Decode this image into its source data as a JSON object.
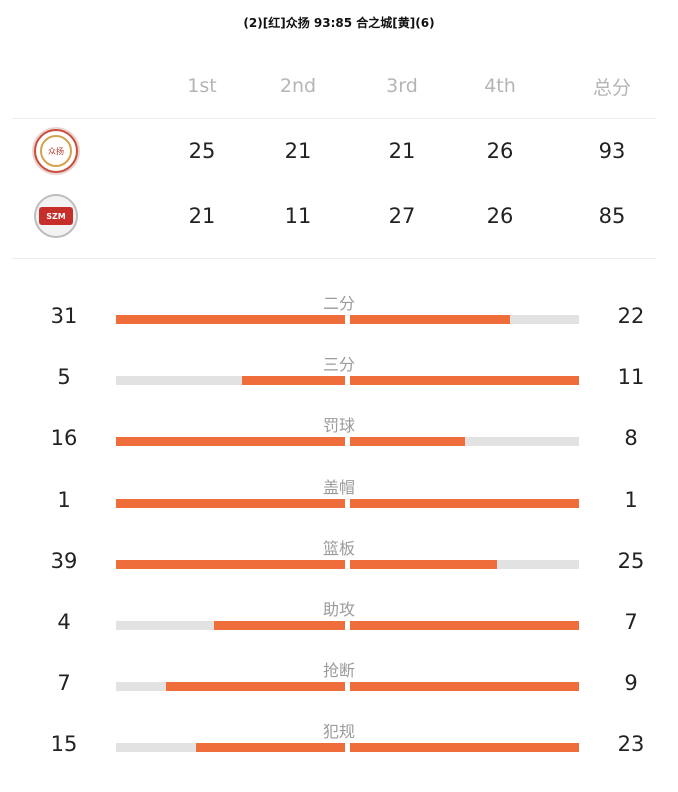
{
  "title": "(2)[红]众扬 93:85 合之城[黄](6)",
  "colors": {
    "accent": "#ee6d3b",
    "track": "#e2e2e2",
    "header_text": "#b5b5b5",
    "label_text": "#9b9b9b"
  },
  "scoreboard": {
    "headers": [
      "1st",
      "2nd",
      "3rd",
      "4th",
      "总分"
    ],
    "teams": [
      {
        "logo_icon": "team-logo-zhongyang",
        "logo_text": "众扬",
        "quarters": [
          "25",
          "21",
          "21",
          "26"
        ],
        "total": "93"
      },
      {
        "logo_icon": "team-logo-hezhicheng",
        "logo_text": "SZM",
        "quarters": [
          "21",
          "11",
          "27",
          "26"
        ],
        "total": "85"
      }
    ]
  },
  "stats": [
    {
      "label": "二分",
      "left": "31",
      "right": "22",
      "left_fill": 1.0,
      "right_fill": 0.7
    },
    {
      "label": "三分",
      "left": "5",
      "right": "11",
      "left_fill": 0.45,
      "right_fill": 1.0
    },
    {
      "label": "罚球",
      "left": "16",
      "right": "8",
      "left_fill": 1.0,
      "right_fill": 0.5
    },
    {
      "label": "盖帽",
      "left": "1",
      "right": "1",
      "left_fill": 1.0,
      "right_fill": 1.0
    },
    {
      "label": "篮板",
      "left": "39",
      "right": "25",
      "left_fill": 1.0,
      "right_fill": 0.64
    },
    {
      "label": "助攻",
      "left": "4",
      "right": "7",
      "left_fill": 0.57,
      "right_fill": 1.0
    },
    {
      "label": "抢断",
      "left": "7",
      "right": "9",
      "left_fill": 0.78,
      "right_fill": 1.0
    },
    {
      "label": "犯规",
      "left": "15",
      "right": "23",
      "left_fill": 0.65,
      "right_fill": 1.0
    }
  ]
}
